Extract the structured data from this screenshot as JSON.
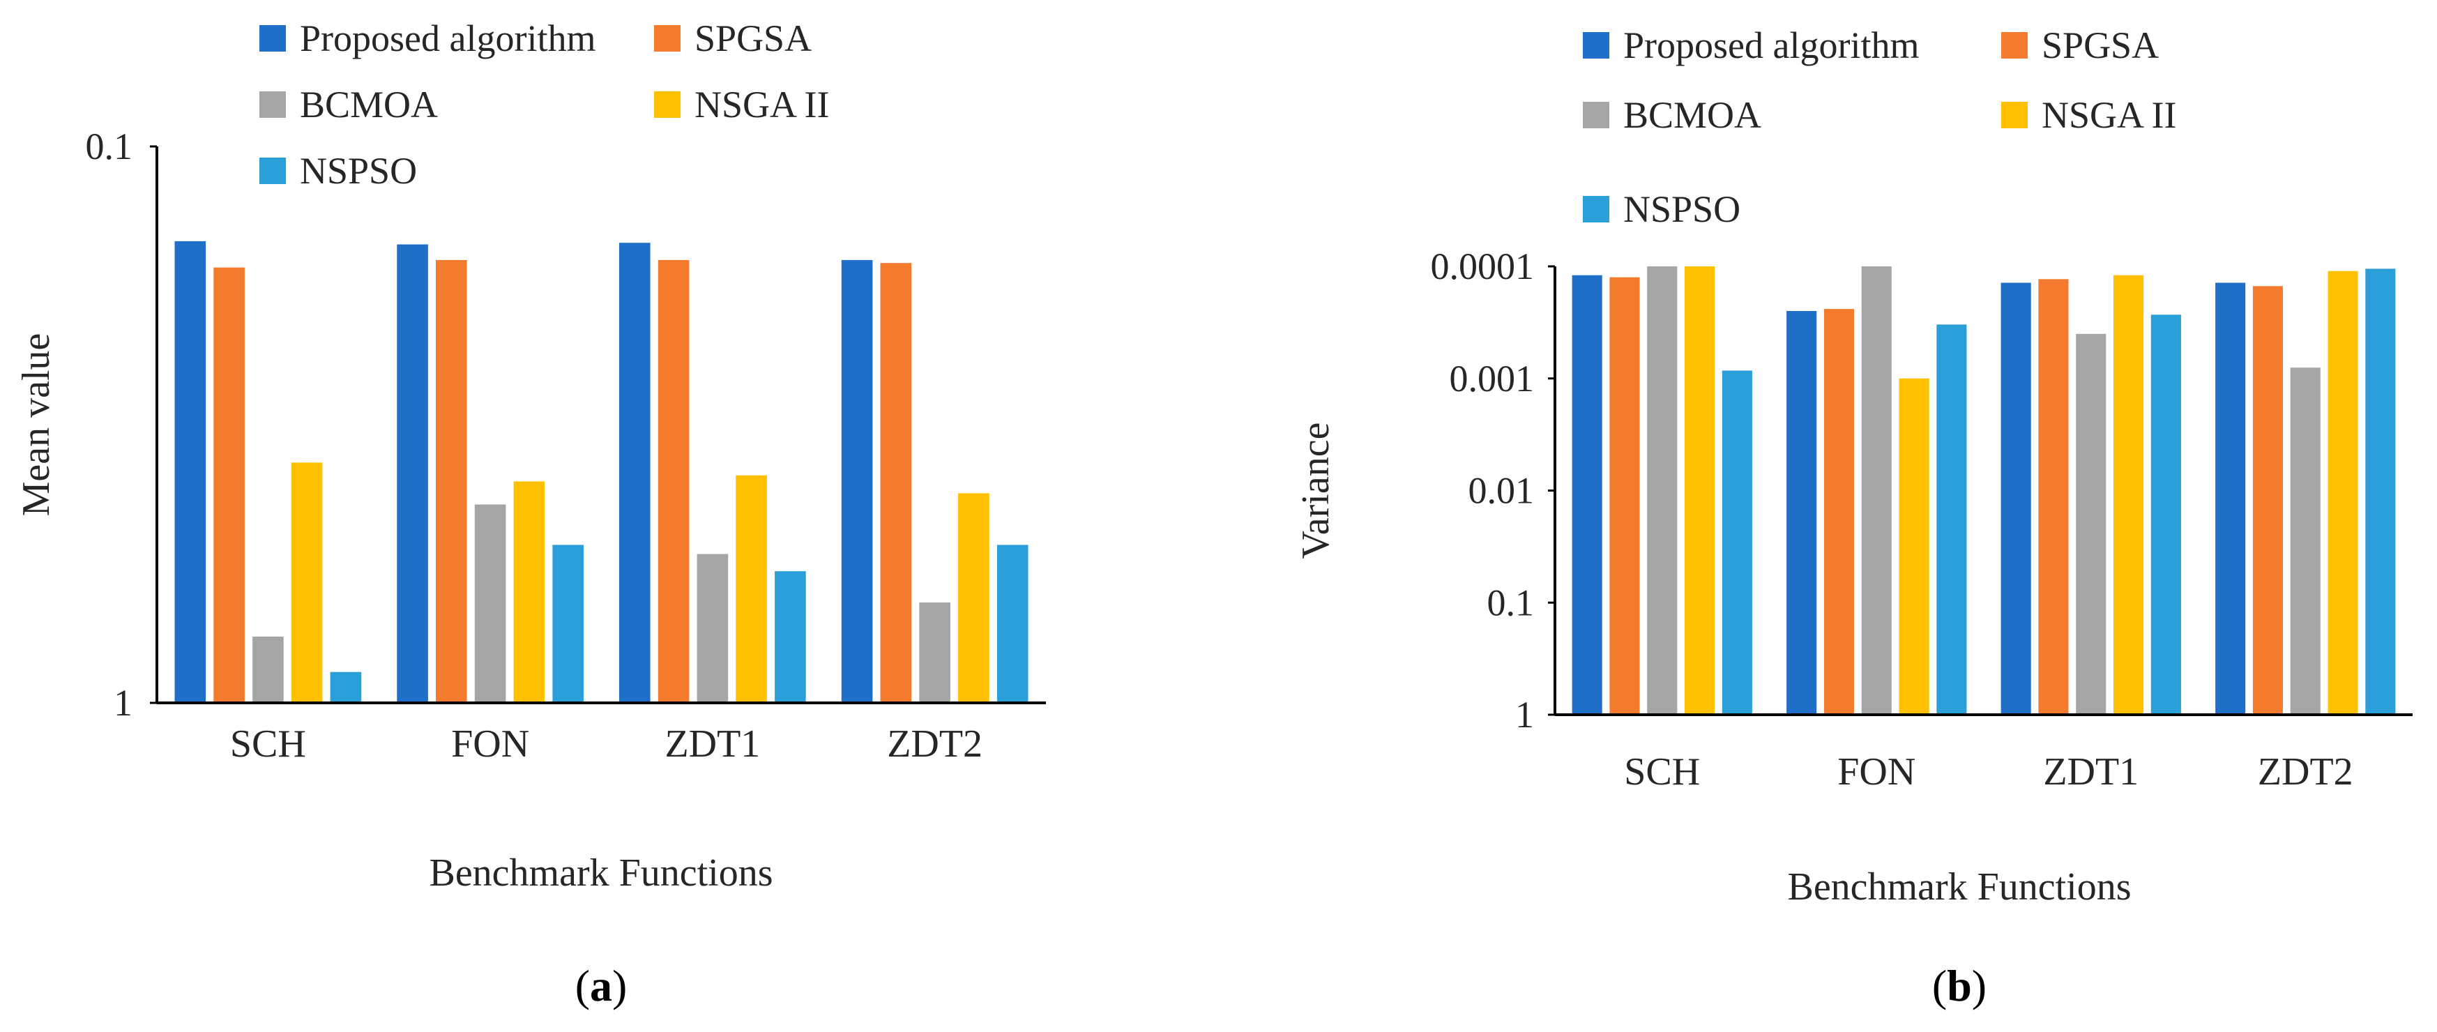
{
  "colors": {
    "Proposed algorithm": "#1f6fc8",
    "SPGSA": "#f47b2e",
    "BCMOA": "#a5a5a5",
    "NSGA II": "#ffc000",
    "NSPSO": "#2a9fd9"
  },
  "chart_data": [
    {
      "type": "bar",
      "panel_label": "a",
      "xlabel": "Benchmark Functions",
      "ylabel": "Mean value",
      "yscale": "log",
      "yaxis_reversed": true,
      "ylim": [
        1,
        0.1
      ],
      "yticks": [
        "0.1",
        "1"
      ],
      "legend_position": "top",
      "categories": [
        "SCH",
        "FON",
        "ZDT1",
        "ZDT2"
      ],
      "series": [
        {
          "name": "Proposed algorithm",
          "values": [
            0.148,
            0.15,
            0.149,
            0.16
          ]
        },
        {
          "name": "SPGSA",
          "values": [
            0.165,
            0.16,
            0.16,
            0.162
          ]
        },
        {
          "name": "BCMOA",
          "values": [
            0.76,
            0.44,
            0.54,
            0.66
          ]
        },
        {
          "name": "NSGA II",
          "values": [
            0.37,
            0.4,
            0.39,
            0.42
          ]
        },
        {
          "name": "NSPSO",
          "values": [
            0.88,
            0.52,
            0.58,
            0.52
          ]
        }
      ]
    },
    {
      "type": "bar",
      "panel_label": "b",
      "xlabel": "Benchmark Functions",
      "ylabel": "Variance",
      "yscale": "log",
      "yaxis_reversed": true,
      "ylim": [
        1,
        0.0001
      ],
      "yticks": [
        "0.0001",
        "0.001",
        "0.01",
        "0.1",
        "1"
      ],
      "legend_position": "top",
      "categories": [
        "SCH",
        "FON",
        "ZDT1",
        "ZDT2"
      ],
      "series": [
        {
          "name": "Proposed algorithm",
          "values": [
            0.00012,
            0.00025,
            0.00014,
            0.00014
          ]
        },
        {
          "name": "SPGSA",
          "values": [
            0.000125,
            0.00024,
            0.00013,
            0.00015
          ]
        },
        {
          "name": "BCMOA",
          "values": [
            0.0001,
            0.0001,
            0.0004,
            0.0008
          ]
        },
        {
          "name": "NSGA II",
          "values": [
            0.0001,
            0.001,
            0.00012,
            0.00011
          ]
        },
        {
          "name": "NSPSO",
          "values": [
            0.00085,
            0.00033,
            0.00027,
            0.000105
          ]
        }
      ]
    }
  ]
}
